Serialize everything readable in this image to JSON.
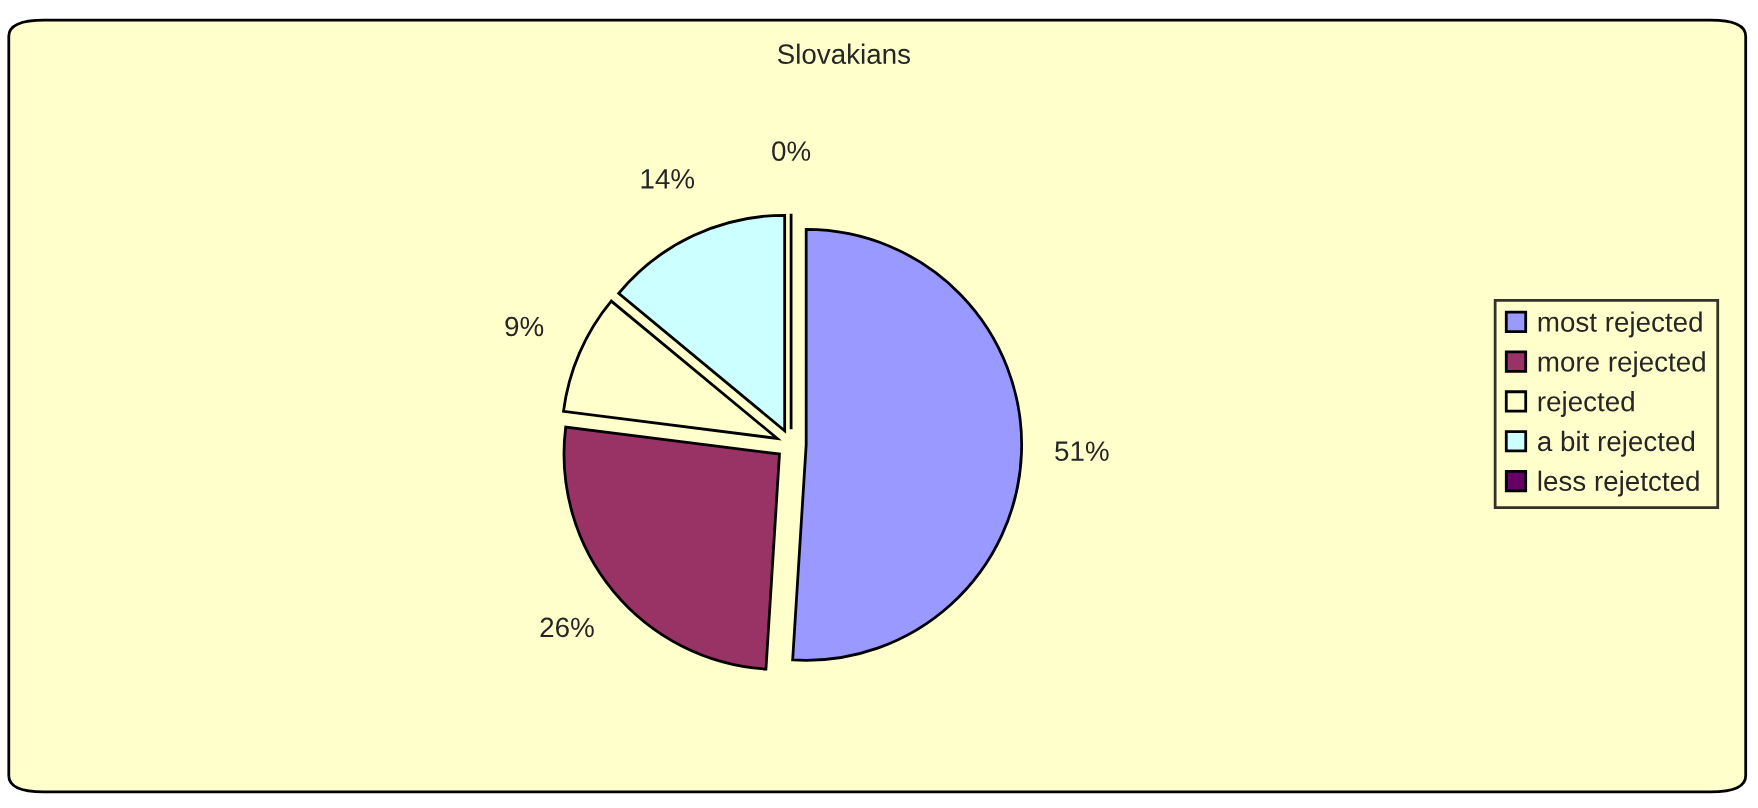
{
  "chart_data": {
    "type": "pie",
    "title": "Slovakians",
    "categories": [
      "most rejected",
      "more rejected",
      "rejected",
      "a bit rejected",
      "less rejetcted"
    ],
    "values": [
      51,
      26,
      9,
      14,
      0
    ],
    "colors": [
      "#9999ff",
      "#993366",
      "#ffffcc",
      "#ccffff",
      "#660066"
    ],
    "value_labels": [
      "51%",
      "26%",
      "9%",
      "14%",
      "0%"
    ],
    "legend": "right"
  }
}
